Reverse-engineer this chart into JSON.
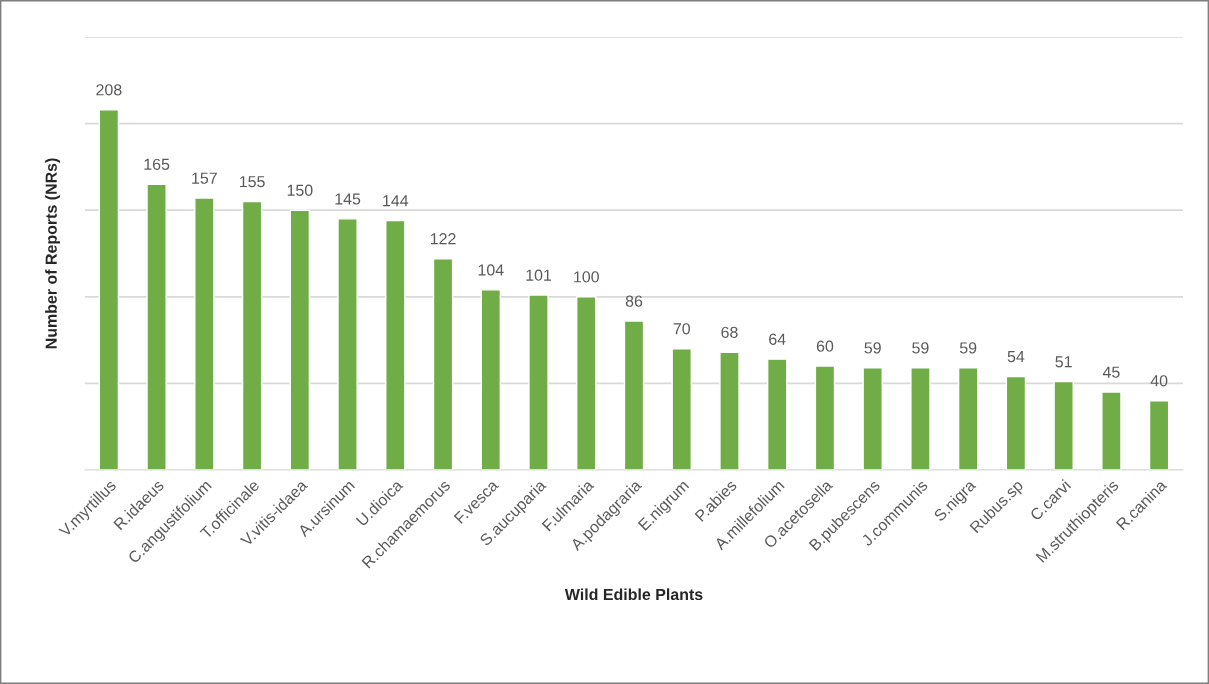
{
  "chart_data": {
    "type": "bar",
    "xlabel": "Wild Edible Plants",
    "ylabel": "Number of Reports (NRs)",
    "categories": [
      "V.myrtillus",
      "R.idaeus",
      "C.angustifolium",
      "T.officinale",
      "V.vitis-idaea",
      "A.ursinum",
      "U.dioica",
      "R.chamaemorus",
      "F.vesca",
      "S.aucuparia",
      "F.ulmaria",
      "A.podagraria",
      "E.nigrum",
      "P.abies",
      "A.millefolium",
      "O.acetosella",
      "B.pubescens",
      "J.communis",
      "S.nigra",
      "Rubus.sp",
      "C.carvi",
      "M.struthiopteris",
      "R.canina"
    ],
    "values": [
      208,
      165,
      157,
      155,
      150,
      145,
      144,
      122,
      104,
      101,
      100,
      86,
      70,
      68,
      64,
      60,
      59,
      59,
      59,
      54,
      51,
      45,
      40
    ],
    "color": "#70ad47",
    "data_labels": true,
    "ylim": [
      0,
      250
    ],
    "yticks": [
      {
        "value": 0,
        "label": null
      },
      {
        "value": 50,
        "label": null
      },
      {
        "value": 100,
        "label": null
      },
      {
        "value": 150,
        "label": null
      },
      {
        "value": 200,
        "label": null
      },
      {
        "value": 250,
        "label": null
      }
    ],
    "grid": "y",
    "tick_labels": "x"
  }
}
